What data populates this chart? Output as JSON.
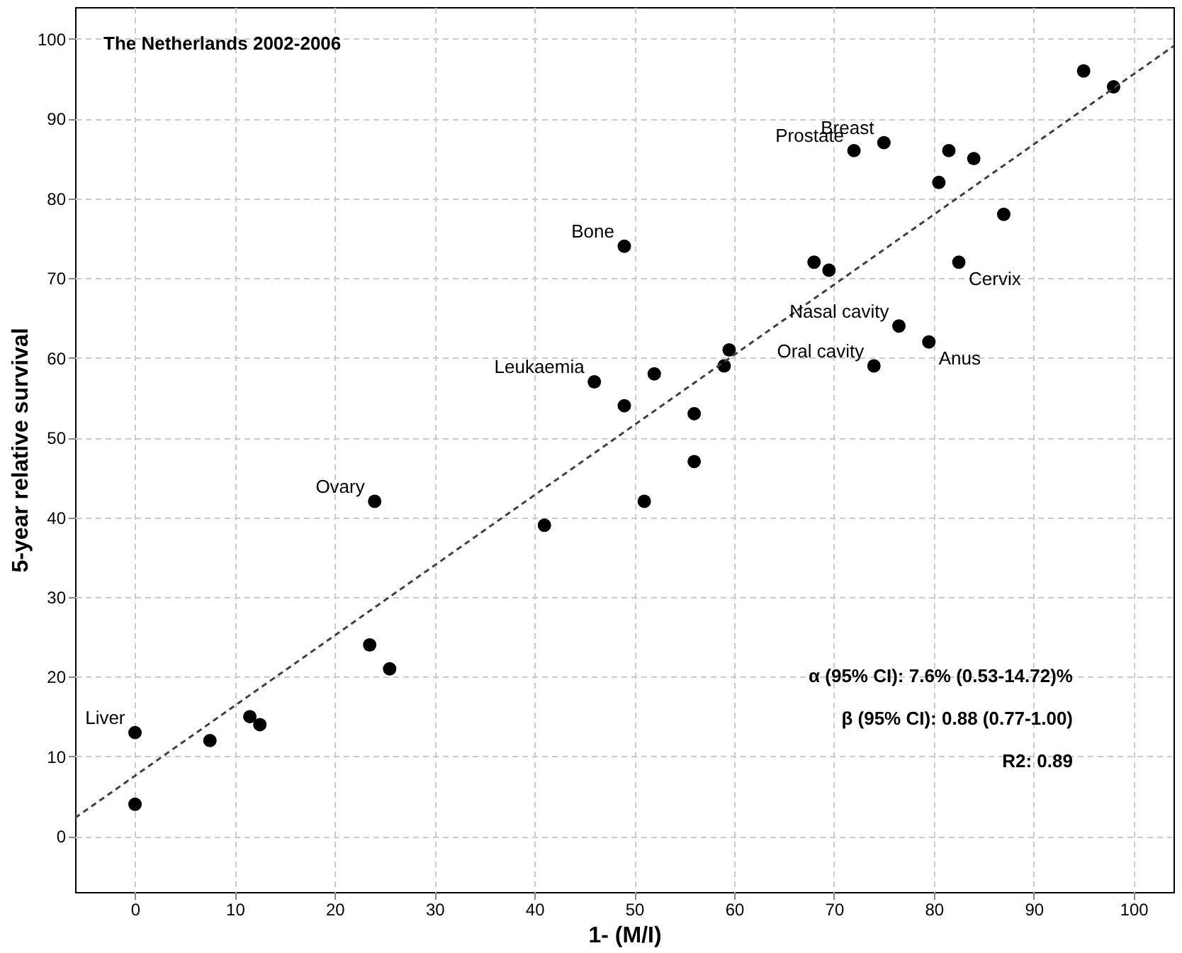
{
  "chart_data": {
    "type": "scatter",
    "xlabel": "1- (M/I)",
    "ylabel": "5-year relative survival",
    "xlim": [
      -6,
      104
    ],
    "ylim": [
      -7,
      104
    ],
    "xticks": [
      0,
      10,
      20,
      30,
      40,
      50,
      60,
      70,
      80,
      90,
      100
    ],
    "yticks": [
      0,
      10,
      20,
      30,
      40,
      50,
      60,
      70,
      80,
      90,
      100
    ],
    "grid": true,
    "marker": "circle",
    "series": [
      {
        "color": "#000000",
        "x": [
          0,
          0,
          7.5,
          11.5,
          12.5,
          23.5,
          25.5,
          24,
          41,
          46,
          49,
          49,
          51,
          52,
          56,
          56,
          59,
          59.5,
          68,
          69.5,
          72,
          75,
          74,
          76.5,
          79.5,
          80.5,
          81.5,
          82.5,
          84,
          87,
          95,
          98
        ],
        "values": [
          13,
          4,
          12,
          15,
          14,
          24,
          21,
          42,
          39,
          57,
          54,
          74,
          42,
          58,
          53,
          47,
          59,
          61,
          72,
          71,
          86,
          87,
          59,
          64,
          62,
          82,
          86,
          72,
          85,
          78,
          96,
          94
        ]
      },
      {
        "type": "line",
        "color": "#404040",
        "line_style": "dashed",
        "marker": "none",
        "x": [
          -6,
          104
        ],
        "values": [
          2.3,
          99.1
        ]
      }
    ],
    "annotations": [
      "The Netherlands 2002-2006",
      "α (95% CI): 7.6% (0.53-14.72)%",
      "β (95% CI): 0.88 (0.77-1.00)",
      "R2: 0.89",
      {
        "text": "Liver",
        "x": 0,
        "y": 13
      },
      {
        "text": "Ovary",
        "x": 24,
        "y": 42
      },
      {
        "text": "Leukaemia",
        "x": 46,
        "y": 57
      },
      {
        "text": "Bone",
        "x": 49,
        "y": 74
      },
      {
        "text": "Prostate",
        "x": 72,
        "y": 86
      },
      {
        "text": "Breast",
        "x": 75,
        "y": 87
      },
      {
        "text": "Oral cavity",
        "x": 74,
        "y": 59
      },
      {
        "text": "Nasal cavity",
        "x": 76.5,
        "y": 64
      },
      {
        "text": "Anus",
        "x": 79.5,
        "y": 62
      },
      {
        "text": "Cervix",
        "x": 82.5,
        "y": 72
      }
    ]
  }
}
